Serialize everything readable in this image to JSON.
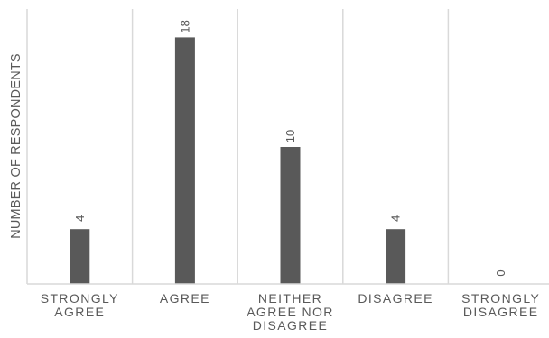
{
  "chart_data": {
    "type": "bar",
    "ylabel": "NUMBER OF RESPONDENTS",
    "categories": [
      [
        "STRONGLY",
        "AGREE"
      ],
      [
        "AGREE"
      ],
      [
        "NEITHER",
        "AGREE NOR",
        "DISAGREE"
      ],
      [
        "DISAGREE"
      ],
      [
        "STRONGLY",
        "DISAGREE"
      ]
    ],
    "values": [
      4,
      18,
      10,
      4,
      0
    ],
    "data_labels": [
      "4",
      "18",
      "10",
      "4",
      "0"
    ],
    "ylim": [
      0,
      20
    ],
    "grid": "vertical separators",
    "bar_color": "#595959",
    "text_color": "#595959",
    "grid_color": "#d9d9d9"
  }
}
